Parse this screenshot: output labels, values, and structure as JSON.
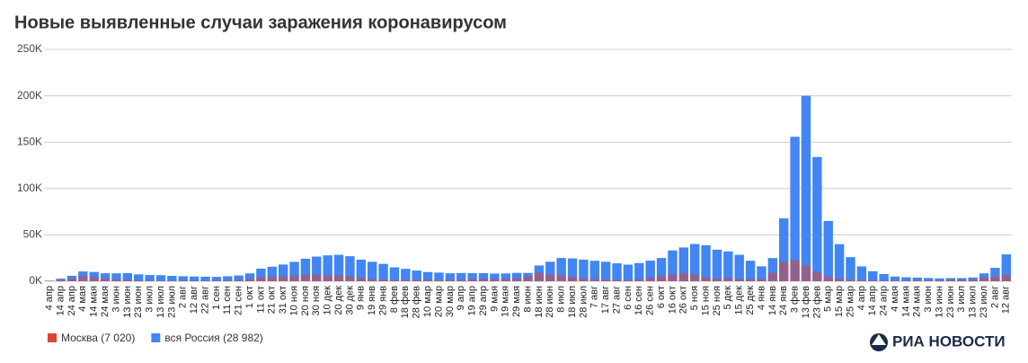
{
  "chart_data": {
    "type": "bar",
    "title": "Новые выявленные случаи заражения коронавирусом",
    "categories": [
      "4 апр",
      "14 апр",
      "24 апр",
      "4 мая",
      "14 мая",
      "24 мая",
      "3 июн",
      "13 июн",
      "23 июн",
      "3 июл",
      "13 июл",
      "23 июл",
      "2 авг",
      "12 авг",
      "22 авг",
      "1 сен",
      "11 сен",
      "21 сен",
      "1 окт",
      "11 окт",
      "21 окт",
      "31 окт",
      "10 ноя",
      "20 ноя",
      "30 ноя",
      "10 дек",
      "20 дек",
      "30 дек",
      "9 янв",
      "19 янв",
      "29 янв",
      "8 фев",
      "18 фев",
      "28 фев",
      "10 мар",
      "20 мар",
      "30 мар",
      "9 апр",
      "19 апр",
      "29 апр",
      "9 мая",
      "19 мая",
      "29 мая",
      "8 июн",
      "18 июн",
      "28 июн",
      "8 июл",
      "18 июл",
      "28 июл",
      "7 авг",
      "17 авг",
      "27 авг",
      "6 сен",
      "16 сен",
      "26 сен",
      "6 окт",
      "16 окт",
      "26 окт",
      "5 ноя",
      "15 ноя",
      "25 ноя",
      "5 дек",
      "15 дек",
      "25 дек",
      "4 янв",
      "14 янв",
      "24 янв",
      "3 фев",
      "13 фев",
      "23 фев",
      "5 мар",
      "15 мар",
      "25 мар",
      "4 апр",
      "14 апр",
      "24 апр",
      "4 мая",
      "14 мая",
      "24 мая",
      "3 июн",
      "13 июн",
      "23 июн",
      "3 июл",
      "13 июл",
      "23 июл",
      "2 авг",
      "12 авг"
    ],
    "series": [
      {
        "name": "вся Россия (28 982)",
        "color": "#4285f4",
        "values": [
          600,
          2800,
          5900,
          10600,
          10000,
          8600,
          8500,
          8700,
          7400,
          6700,
          6500,
          5800,
          5400,
          5100,
          4900,
          4700,
          5400,
          6200,
          8500,
          13600,
          15700,
          18000,
          20900,
          24300,
          26600,
          27900,
          28500,
          27000,
          23300,
          21000,
          18700,
          15000,
          13400,
          11500,
          9900,
          9300,
          8600,
          8900,
          8700,
          8800,
          8300,
          8400,
          9000,
          9000,
          17000,
          21000,
          25100,
          24600,
          23300,
          22100,
          21000,
          19300,
          17900,
          19600,
          22200,
          25100,
          33200,
          36400,
          40200,
          38800,
          34000,
          32100,
          28500,
          22100,
          16100,
          25000,
          67800,
          155800,
          200000,
          134000,
          65000,
          40000,
          26000,
          16000,
          10800,
          7800,
          5100,
          4300,
          3900,
          3500,
          3100,
          3400,
          3400,
          4000,
          8500,
          14500,
          28982
        ]
      },
      {
        "name": "Москва (7 020)",
        "color": "#db4437",
        "values": [
          434,
          1300,
          2700,
          5800,
          4700,
          2600,
          1900,
          1600,
          900,
          650,
          650,
          600,
          650,
          700,
          650,
          600,
          750,
          1300,
          2400,
          4400,
          4800,
          5100,
          5700,
          6900,
          7000,
          5900,
          6400,
          5300,
          4000,
          2600,
          1900,
          1300,
          1400,
          1400,
          1500,
          1100,
          1300,
          1700,
          2400,
          2700,
          2100,
          2500,
          3000,
          5500,
          9100,
          7300,
          6600,
          4800,
          3200,
          2400,
          1900,
          1500,
          1300,
          2200,
          3800,
          5900,
          7500,
          8700,
          7100,
          4200,
          2700,
          3400,
          2400,
          2300,
          2700,
          9200,
          20800,
          23000,
          17000,
          10200,
          4700,
          2800,
          1800,
          1500,
          1200,
          1200,
          800,
          800,
          900,
          950,
          950,
          1400,
          1400,
          1800,
          3800,
          5000,
          7020
        ]
      }
    ],
    "ylim": [
      0,
      250000
    ],
    "yticks": [
      {
        "value": 0,
        "label": "0K"
      },
      {
        "value": 50000,
        "label": "50K"
      },
      {
        "value": 100000,
        "label": "100K"
      },
      {
        "value": 150000,
        "label": "150K"
      },
      {
        "value": 200000,
        "label": "200K"
      },
      {
        "value": 250000,
        "label": "250K"
      }
    ],
    "grid": true,
    "legend": "bottom",
    "source": "РИА НОВОСТИ"
  }
}
